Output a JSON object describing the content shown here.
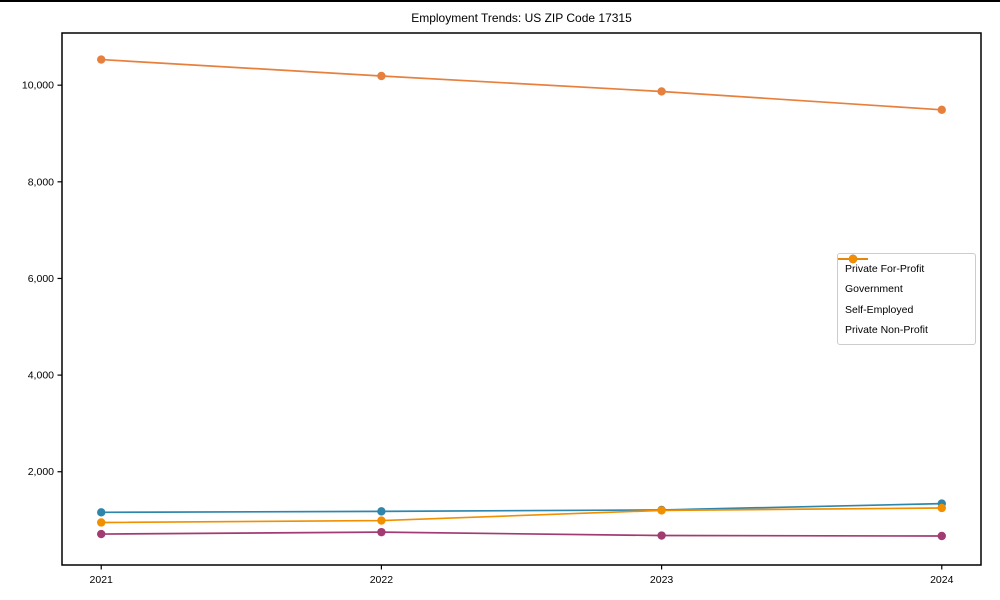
{
  "chart_data": {
    "type": "line",
    "title": "Employment Trends: US ZIP Code 17315",
    "x": [
      2021,
      2022,
      2023,
      2024
    ],
    "x_labels": [
      "2021",
      "2022",
      "2023",
      "2024"
    ],
    "series": [
      {
        "name": "Private For-Profit",
        "color": "#E8803D",
        "values": [
          10530,
          10190,
          9870,
          9490
        ]
      },
      {
        "name": "Government",
        "color": "#2E86AB",
        "values": [
          1160,
          1180,
          1210,
          1340
        ]
      },
      {
        "name": "Self-Employed",
        "color": "#A23B72",
        "values": [
          710,
          750,
          680,
          670
        ]
      },
      {
        "name": "Private Non-Profit",
        "color": "#F18F01",
        "values": [
          950,
          990,
          1200,
          1250
        ]
      }
    ],
    "xlim": [
      2020.86,
      2024.14
    ],
    "ylim": [
      70,
      11080
    ],
    "yticks": [
      2000,
      4000,
      6000,
      8000,
      10000
    ],
    "ytick_labels": [
      "2,000",
      "4,000",
      "6,000",
      "8,000",
      "10,000"
    ],
    "legend_position": "center right",
    "grid": false,
    "axis_color": "#000000",
    "background_color": "#ffffff"
  }
}
